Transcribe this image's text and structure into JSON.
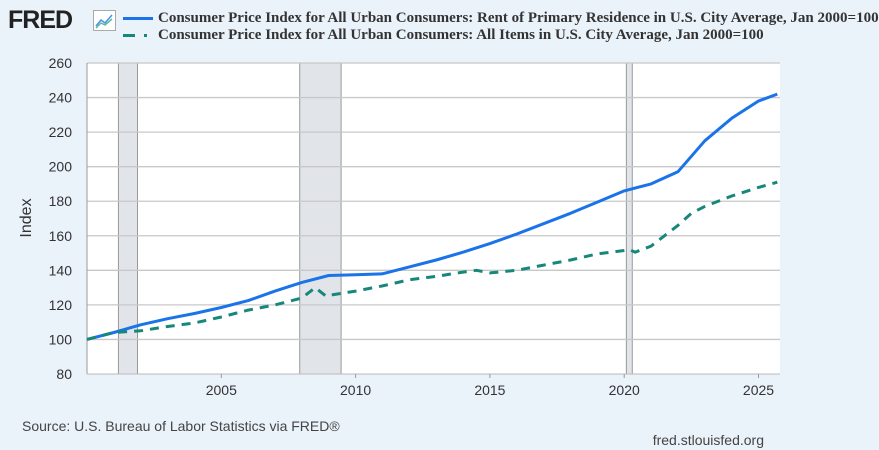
{
  "header": {
    "logo": "FRED"
  },
  "chart_data": {
    "type": "line",
    "title": "",
    "xlabel": "",
    "ylabel": "Index",
    "xlim": [
      2000,
      2025.8
    ],
    "ylim": [
      80,
      260
    ],
    "yticks": [
      80,
      100,
      120,
      140,
      160,
      180,
      200,
      220,
      240,
      260
    ],
    "xticks": [
      2005,
      2010,
      2015,
      2020,
      2025
    ],
    "grid": true,
    "legend_placement": "top",
    "recessions": [
      [
        2001.17,
        2001.88
      ],
      [
        2007.92,
        2009.46
      ],
      [
        2020.08,
        2020.3
      ]
    ],
    "series": [
      {
        "name": "Consumer Price Index for All Urban Consumers: Rent of Primary Residence in U.S. City Average, Jan 2000=100",
        "color": "#1a73e8",
        "style": "solid",
        "x": [
          2000,
          2001,
          2002,
          2003,
          2004,
          2005,
          2006,
          2007,
          2008,
          2009,
          2010,
          2011,
          2012,
          2013,
          2014,
          2015,
          2016,
          2017,
          2018,
          2019,
          2020,
          2021,
          2022,
          2023,
          2024,
          2025,
          2025.7
        ],
        "y": [
          100,
          104,
          108.5,
          112,
          115,
          118.5,
          122.5,
          128,
          133,
          137,
          137.5,
          138,
          142,
          146,
          150.5,
          155.5,
          161,
          167,
          173,
          179.5,
          186,
          190,
          197,
          215,
          228,
          238,
          242
        ]
      },
      {
        "name": "Consumer Price Index for All Urban Consumers: All Items in U.S. City Average, Jan 2000=100",
        "color": "#17877a",
        "style": "dashed",
        "x": [
          2000,
          2001,
          2002,
          2003,
          2004,
          2005,
          2006,
          2007,
          2008,
          2008.5,
          2008.9,
          2009,
          2010,
          2011,
          2012,
          2013,
          2014,
          2014.5,
          2015,
          2016,
          2017,
          2018,
          2019,
          2020,
          2020.2,
          2020.4,
          2021,
          2022,
          2022.5,
          2023,
          2024,
          2025,
          2025.7
        ],
        "y": [
          100,
          104,
          105,
          107.5,
          109.5,
          113,
          117,
          120,
          124,
          130,
          125,
          125.5,
          128,
          131,
          134.5,
          136.5,
          139,
          140,
          138.5,
          140,
          143,
          146,
          149.5,
          151.5,
          152,
          150.5,
          154,
          166,
          173,
          177,
          183,
          188,
          191
        ]
      }
    ]
  },
  "footer": {
    "source": "Source: U.S. Bureau of Labor Statistics via FRED®",
    "site": "fred.stlouisfed.org"
  }
}
